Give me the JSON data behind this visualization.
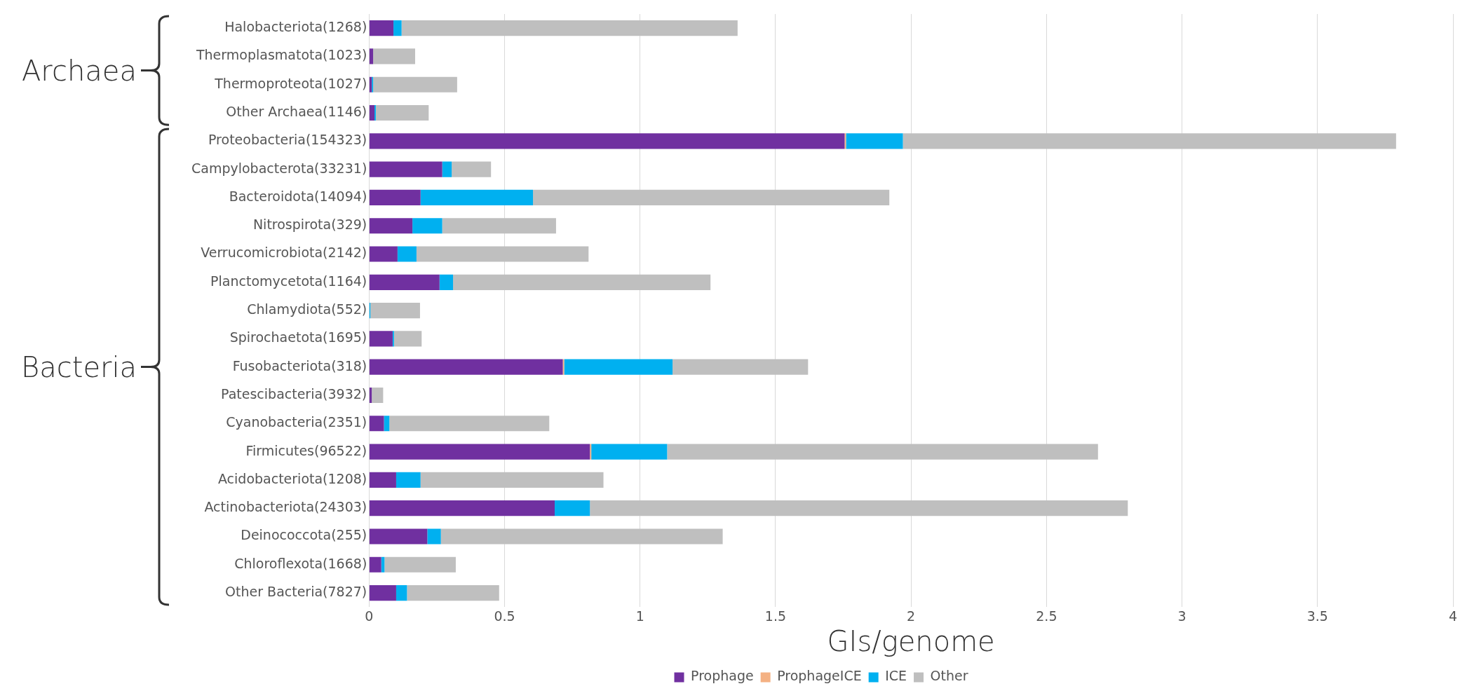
{
  "chart_data": {
    "type": "bar",
    "orientation": "horizontal",
    "stacked": true,
    "xlabel": "GIs/genome",
    "categories": [
      "Halobacteriota(1268)",
      "Thermoplasmatota(1023)",
      "Thermoproteota(1027)",
      "Other Archaea(1146)",
      "Proteobacteria(154323)",
      "Campylobacterota(33231)",
      "Bacteroidota(14094)",
      "Nitrospirota(329)",
      "Verrucomicrobiota(2142)",
      "Planctomycetota(1164)",
      "Chlamydiota(552)",
      "Spirochaetota(1695)",
      "Fusobacteriota(318)",
      "Patescibacteria(3932)",
      "Cyanobacteria(2351)",
      "Firmicutes(96522)",
      "Acidobacteriota(1208)",
      "Actinobacteriota(24303)",
      "Deinococcota(255)",
      "Chloroflexota(1668)",
      "Other Bacteria(7827)"
    ],
    "series": [
      {
        "name": "Prophage",
        "color": "#7030a0",
        "values": [
          0.09,
          0.015,
          0.01,
          0.02,
          1.755,
          0.27,
          0.19,
          0.16,
          0.105,
          0.26,
          null,
          0.087,
          0.715,
          0.01,
          0.055,
          0.815,
          0.1,
          0.685,
          0.215,
          0.045,
          0.1
        ]
      },
      {
        "name": "ProphageICE",
        "color": "#f4b183",
        "values": [
          0,
          0,
          0,
          0,
          0.005,
          0,
          0,
          0,
          0,
          0,
          0,
          0,
          0.005,
          0,
          0,
          0.005,
          0,
          0,
          0,
          0,
          0
        ]
      },
      {
        "name": "ICE",
        "color": "#00b0f0",
        "values": [
          0.03,
          0,
          0.005,
          0.005,
          0.21,
          0.035,
          0.415,
          0.11,
          0.07,
          0.05,
          0.005,
          0.005,
          0.4,
          0,
          0.02,
          0.28,
          0.09,
          0.13,
          0.05,
          0.012,
          0.04
        ]
      },
      {
        "name": "Other",
        "color": "#bfbfbf",
        "values": [
          1.24,
          0.155,
          0.31,
          0.195,
          1.82,
          0.145,
          1.315,
          0.42,
          0.635,
          0.95,
          0.183,
          0.102,
          0.5,
          0.042,
          0.59,
          1.59,
          0.675,
          1.985,
          1.04,
          0.263,
          0.34
        ]
      }
    ],
    "xlim": [
      0,
      4
    ],
    "xticks": [
      0,
      0.5,
      1,
      1.5,
      2,
      2.5,
      3,
      3.5,
      4
    ],
    "grid": "x",
    "legend": "bottom",
    "annotations": [
      "Archaea",
      "Bacteria"
    ]
  }
}
